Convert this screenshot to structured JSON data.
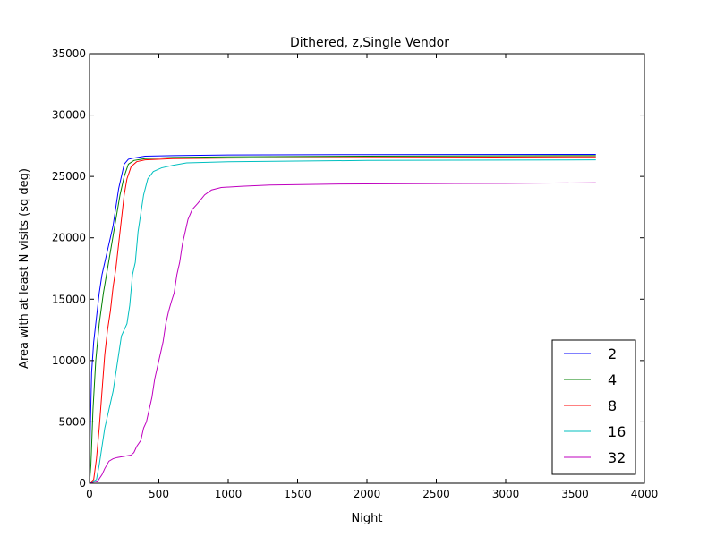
{
  "chart_data": {
    "type": "line",
    "title": "Dithered, z,Single Vendor",
    "xlabel": "Night",
    "ylabel": "Area with at least N visits (sq deg)",
    "xlim": [
      0,
      4000
    ],
    "ylim": [
      0,
      35000
    ],
    "xticks": [
      0,
      500,
      1000,
      1500,
      2000,
      2500,
      3000,
      3500,
      4000
    ],
    "yticks": [
      0,
      5000,
      10000,
      15000,
      20000,
      25000,
      30000,
      35000
    ],
    "grid": false,
    "legend_position": "lower-right",
    "series": [
      {
        "name": "2",
        "color": "#0000ff",
        "points": [
          [
            0,
            0
          ],
          [
            5,
            4000
          ],
          [
            15,
            9000
          ],
          [
            30,
            11500
          ],
          [
            50,
            13500
          ],
          [
            70,
            15500
          ],
          [
            90,
            17000
          ],
          [
            110,
            18000
          ],
          [
            130,
            19000
          ],
          [
            150,
            20000
          ],
          [
            170,
            21000
          ],
          [
            190,
            22500
          ],
          [
            210,
            24000
          ],
          [
            230,
            25000
          ],
          [
            250,
            26000
          ],
          [
            280,
            26400
          ],
          [
            320,
            26500
          ],
          [
            400,
            26650
          ],
          [
            600,
            26700
          ],
          [
            1000,
            26750
          ],
          [
            2000,
            26780
          ],
          [
            3650,
            26800
          ]
        ]
      },
      {
        "name": "4",
        "color": "#008000",
        "points": [
          [
            0,
            0
          ],
          [
            10,
            1500
          ],
          [
            25,
            6000
          ],
          [
            45,
            10000
          ],
          [
            70,
            13000
          ],
          [
            100,
            15500
          ],
          [
            130,
            17500
          ],
          [
            160,
            19500
          ],
          [
            190,
            21500
          ],
          [
            220,
            23500
          ],
          [
            250,
            25000
          ],
          [
            280,
            26000
          ],
          [
            320,
            26300
          ],
          [
            400,
            26450
          ],
          [
            600,
            26550
          ],
          [
            1000,
            26600
          ],
          [
            2000,
            26650
          ],
          [
            3650,
            26700
          ]
        ]
      },
      {
        "name": "8",
        "color": "#ff0000",
        "points": [
          [
            0,
            0
          ],
          [
            30,
            300
          ],
          [
            50,
            2000
          ],
          [
            70,
            4500
          ],
          [
            90,
            7500
          ],
          [
            110,
            10500
          ],
          [
            130,
            12500
          ],
          [
            150,
            14000
          ],
          [
            170,
            16000
          ],
          [
            190,
            17500
          ],
          [
            210,
            19500
          ],
          [
            230,
            21500
          ],
          [
            250,
            23500
          ],
          [
            270,
            24800
          ],
          [
            300,
            25800
          ],
          [
            340,
            26200
          ],
          [
            400,
            26350
          ],
          [
            600,
            26450
          ],
          [
            1000,
            26500
          ],
          [
            2000,
            26550
          ],
          [
            3650,
            26600
          ]
        ]
      },
      {
        "name": "16",
        "color": "#00bfbf",
        "points": [
          [
            0,
            0
          ],
          [
            50,
            300
          ],
          [
            70,
            1500
          ],
          [
            90,
            3000
          ],
          [
            110,
            4500
          ],
          [
            130,
            5500
          ],
          [
            150,
            6500
          ],
          [
            170,
            7500
          ],
          [
            190,
            9000
          ],
          [
            210,
            10500
          ],
          [
            230,
            12000
          ],
          [
            250,
            12500
          ],
          [
            270,
            13000
          ],
          [
            290,
            14500
          ],
          [
            310,
            17000
          ],
          [
            330,
            18000
          ],
          [
            350,
            20500
          ],
          [
            370,
            22000
          ],
          [
            390,
            23500
          ],
          [
            420,
            24800
          ],
          [
            460,
            25400
          ],
          [
            520,
            25700
          ],
          [
            600,
            25900
          ],
          [
            700,
            26100
          ],
          [
            1000,
            26200
          ],
          [
            2000,
            26300
          ],
          [
            3650,
            26350
          ]
        ]
      },
      {
        "name": "32",
        "color": "#bf00bf",
        "points": [
          [
            0,
            0
          ],
          [
            60,
            200
          ],
          [
            90,
            700
          ],
          [
            110,
            1200
          ],
          [
            140,
            1800
          ],
          [
            170,
            2000
          ],
          [
            200,
            2100
          ],
          [
            250,
            2200
          ],
          [
            300,
            2300
          ],
          [
            320,
            2500
          ],
          [
            340,
            3000
          ],
          [
            370,
            3500
          ],
          [
            390,
            4500
          ],
          [
            410,
            5000
          ],
          [
            430,
            6000
          ],
          [
            450,
            7000
          ],
          [
            470,
            8500
          ],
          [
            490,
            9500
          ],
          [
            510,
            10500
          ],
          [
            530,
            11500
          ],
          [
            550,
            13000
          ],
          [
            570,
            14000
          ],
          [
            590,
            14800
          ],
          [
            610,
            15500
          ],
          [
            630,
            17000
          ],
          [
            650,
            18000
          ],
          [
            670,
            19500
          ],
          [
            690,
            20500
          ],
          [
            710,
            21500
          ],
          [
            740,
            22300
          ],
          [
            780,
            22800
          ],
          [
            830,
            23500
          ],
          [
            880,
            23900
          ],
          [
            950,
            24100
          ],
          [
            1100,
            24200
          ],
          [
            1300,
            24300
          ],
          [
            1800,
            24380
          ],
          [
            2500,
            24420
          ],
          [
            3000,
            24440
          ],
          [
            3650,
            24480
          ]
        ]
      }
    ]
  }
}
